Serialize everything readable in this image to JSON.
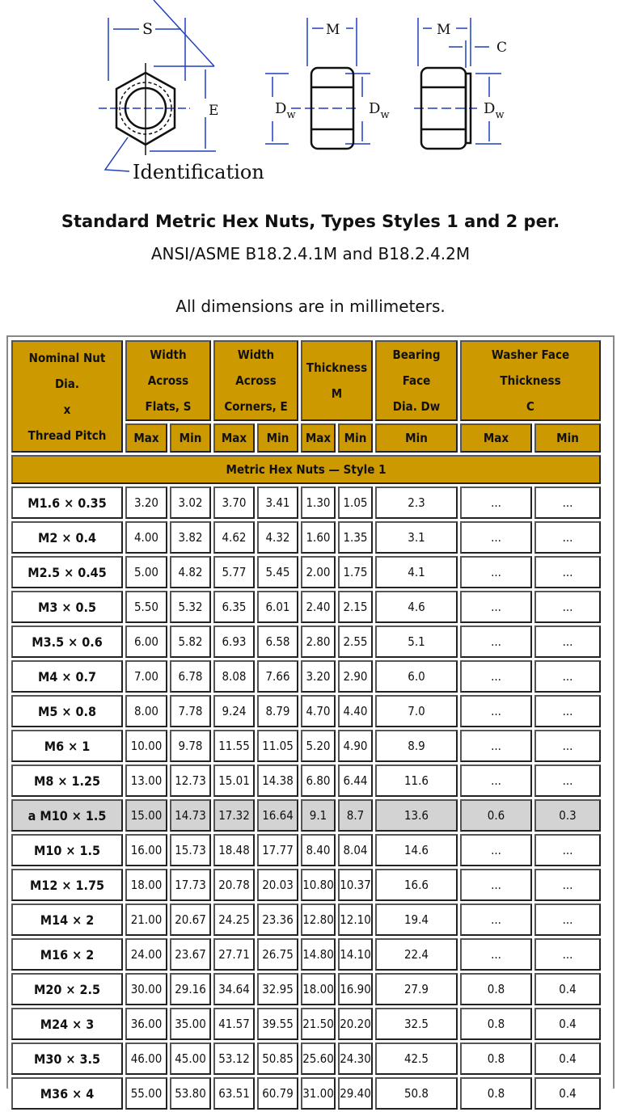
{
  "diagram": {
    "labels": {
      "s": "S",
      "e": "E",
      "m1": "M",
      "m2": "M",
      "c": "C",
      "dw_main": "D",
      "dw_sub": "w",
      "identification": "Identification"
    },
    "line_color": "#1f3fbf"
  },
  "heading": {
    "title": "Standard Metric Hex Nuts, Types Styles 1 and 2 per.",
    "standard": "ANSI/ASME B18.2.4.1M and B18.2.4.2M",
    "units_note": "All dimensions are in millimeters."
  },
  "table": {
    "header_color": "#cc9900",
    "highlight_color": "#d3d3d3",
    "headers": {
      "nominal": [
        "Nominal Nut",
        "Dia.",
        "x",
        "Thread Pitch"
      ],
      "width_flats": [
        "Width",
        "Across",
        "Flats, S"
      ],
      "width_corners": [
        "Width",
        "Across",
        "Corners, E"
      ],
      "thickness": [
        "Thickness",
        "M"
      ],
      "bearing": [
        "Bearing",
        "Face",
        "Dia. Dw"
      ],
      "washer": [
        "Washer Face",
        "Thickness",
        "C"
      ]
    },
    "subheaders": [
      "Max",
      "Min",
      "Max",
      "Min",
      "Max",
      "Min",
      "Min",
      "Max",
      "Min"
    ],
    "section": "Metric Hex Nuts — Style 1",
    "rows": [
      {
        "size": "M1.6 × 0.35",
        "v": [
          "3.20",
          "3.02",
          "3.70",
          "3.41",
          "1.30",
          "1.05",
          "2.3",
          "...",
          "..."
        ]
      },
      {
        "size": "M2 × 0.4",
        "v": [
          "4.00",
          "3.82",
          "4.62",
          "4.32",
          "1.60",
          "1.35",
          "3.1",
          "...",
          "..."
        ]
      },
      {
        "size": "M2.5 × 0.45",
        "v": [
          "5.00",
          "4.82",
          "5.77",
          "5.45",
          "2.00",
          "1.75",
          "4.1",
          "...",
          "..."
        ]
      },
      {
        "size": "M3 × 0.5",
        "v": [
          "5.50",
          "5.32",
          "6.35",
          "6.01",
          "2.40",
          "2.15",
          "4.6",
          "...",
          "..."
        ]
      },
      {
        "size": "M3.5 × 0.6",
        "v": [
          "6.00",
          "5.82",
          "6.93",
          "6.58",
          "2.80",
          "2.55",
          "5.1",
          "...",
          "..."
        ]
      },
      {
        "size": "M4 × 0.7",
        "v": [
          "7.00",
          "6.78",
          "8.08",
          "7.66",
          "3.20",
          "2.90",
          "6.0",
          "...",
          "..."
        ]
      },
      {
        "size": "M5 × 0.8",
        "v": [
          "8.00",
          "7.78",
          "9.24",
          "8.79",
          "4.70",
          "4.40",
          "7.0",
          "...",
          "..."
        ]
      },
      {
        "size": "M6 × 1",
        "v": [
          "10.00",
          "9.78",
          "11.55",
          "11.05",
          "5.20",
          "4.90",
          "8.9",
          "...",
          "..."
        ]
      },
      {
        "size": "M8 × 1.25",
        "v": [
          "13.00",
          "12.73",
          "15.01",
          "14.38",
          "6.80",
          "6.44",
          "11.6",
          "...",
          "..."
        ]
      },
      {
        "size": "a M10 × 1.5",
        "highlight": true,
        "v": [
          "15.00",
          "14.73",
          "17.32",
          "16.64",
          "9.1",
          "8.7",
          "13.6",
          "0.6",
          "0.3"
        ]
      },
      {
        "size": "M10 × 1.5",
        "v": [
          "16.00",
          "15.73",
          "18.48",
          "17.77",
          "8.40",
          "8.04",
          "14.6",
          "...",
          "..."
        ]
      },
      {
        "size": "M12 × 1.75",
        "v": [
          "18.00",
          "17.73",
          "20.78",
          "20.03",
          "10.80",
          "10.37",
          "16.6",
          "...",
          "..."
        ]
      },
      {
        "size": "M14 × 2",
        "v": [
          "21.00",
          "20.67",
          "24.25",
          "23.36",
          "12.80",
          "12.10",
          "19.4",
          "...",
          "..."
        ]
      },
      {
        "size": "M16 × 2",
        "v": [
          "24.00",
          "23.67",
          "27.71",
          "26.75",
          "14.80",
          "14.10",
          "22.4",
          "...",
          "..."
        ]
      },
      {
        "size": "M20 × 2.5",
        "v": [
          "30.00",
          "29.16",
          "34.64",
          "32.95",
          "18.00",
          "16.90",
          "27.9",
          "0.8",
          "0.4"
        ]
      },
      {
        "size": "M24 × 3",
        "v": [
          "36.00",
          "35.00",
          "41.57",
          "39.55",
          "21.50",
          "20.20",
          "32.5",
          "0.8",
          "0.4"
        ]
      },
      {
        "size": "M30 × 3.5",
        "v": [
          "46.00",
          "45.00",
          "53.12",
          "50.85",
          "25.60",
          "24.30",
          "42.5",
          "0.8",
          "0.4"
        ]
      },
      {
        "size": "M36 × 4",
        "v": [
          "55.00",
          "53.80",
          "63.51",
          "60.79",
          "31.00",
          "29.40",
          "50.8",
          "0.8",
          "0.4"
        ]
      }
    ]
  }
}
